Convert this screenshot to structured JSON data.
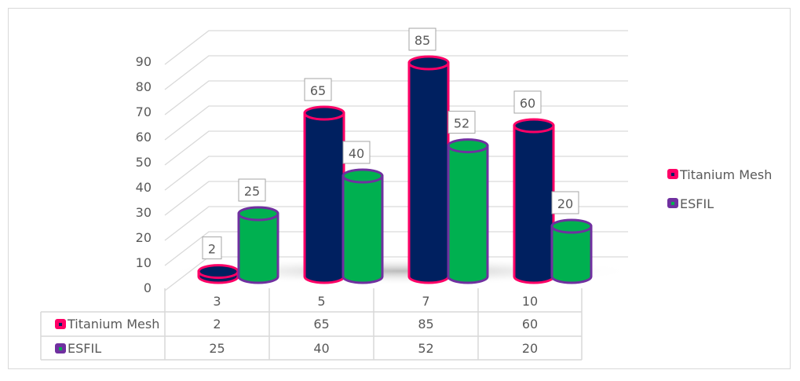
{
  "chart_data": {
    "type": "bar",
    "subtype": "3d-cylinder-with-data-table",
    "categories": [
      "3",
      "5",
      "7",
      "10"
    ],
    "series": [
      {
        "name": "Titanium Mesh",
        "values": [
          2,
          65,
          85,
          60
        ],
        "fill": "#002060",
        "border": "#FF0066"
      },
      {
        "name": "ESFIL",
        "values": [
          25,
          40,
          52,
          20
        ],
        "fill": "#00B050",
        "border": "#7030A0"
      }
    ],
    "y_ticks": [
      "0",
      "10",
      "20",
      "30",
      "40",
      "50",
      "60",
      "70",
      "80",
      "90"
    ],
    "ylim": [
      0,
      90
    ],
    "grid": true,
    "legend": "right",
    "data_labels": true,
    "data_table": true
  }
}
